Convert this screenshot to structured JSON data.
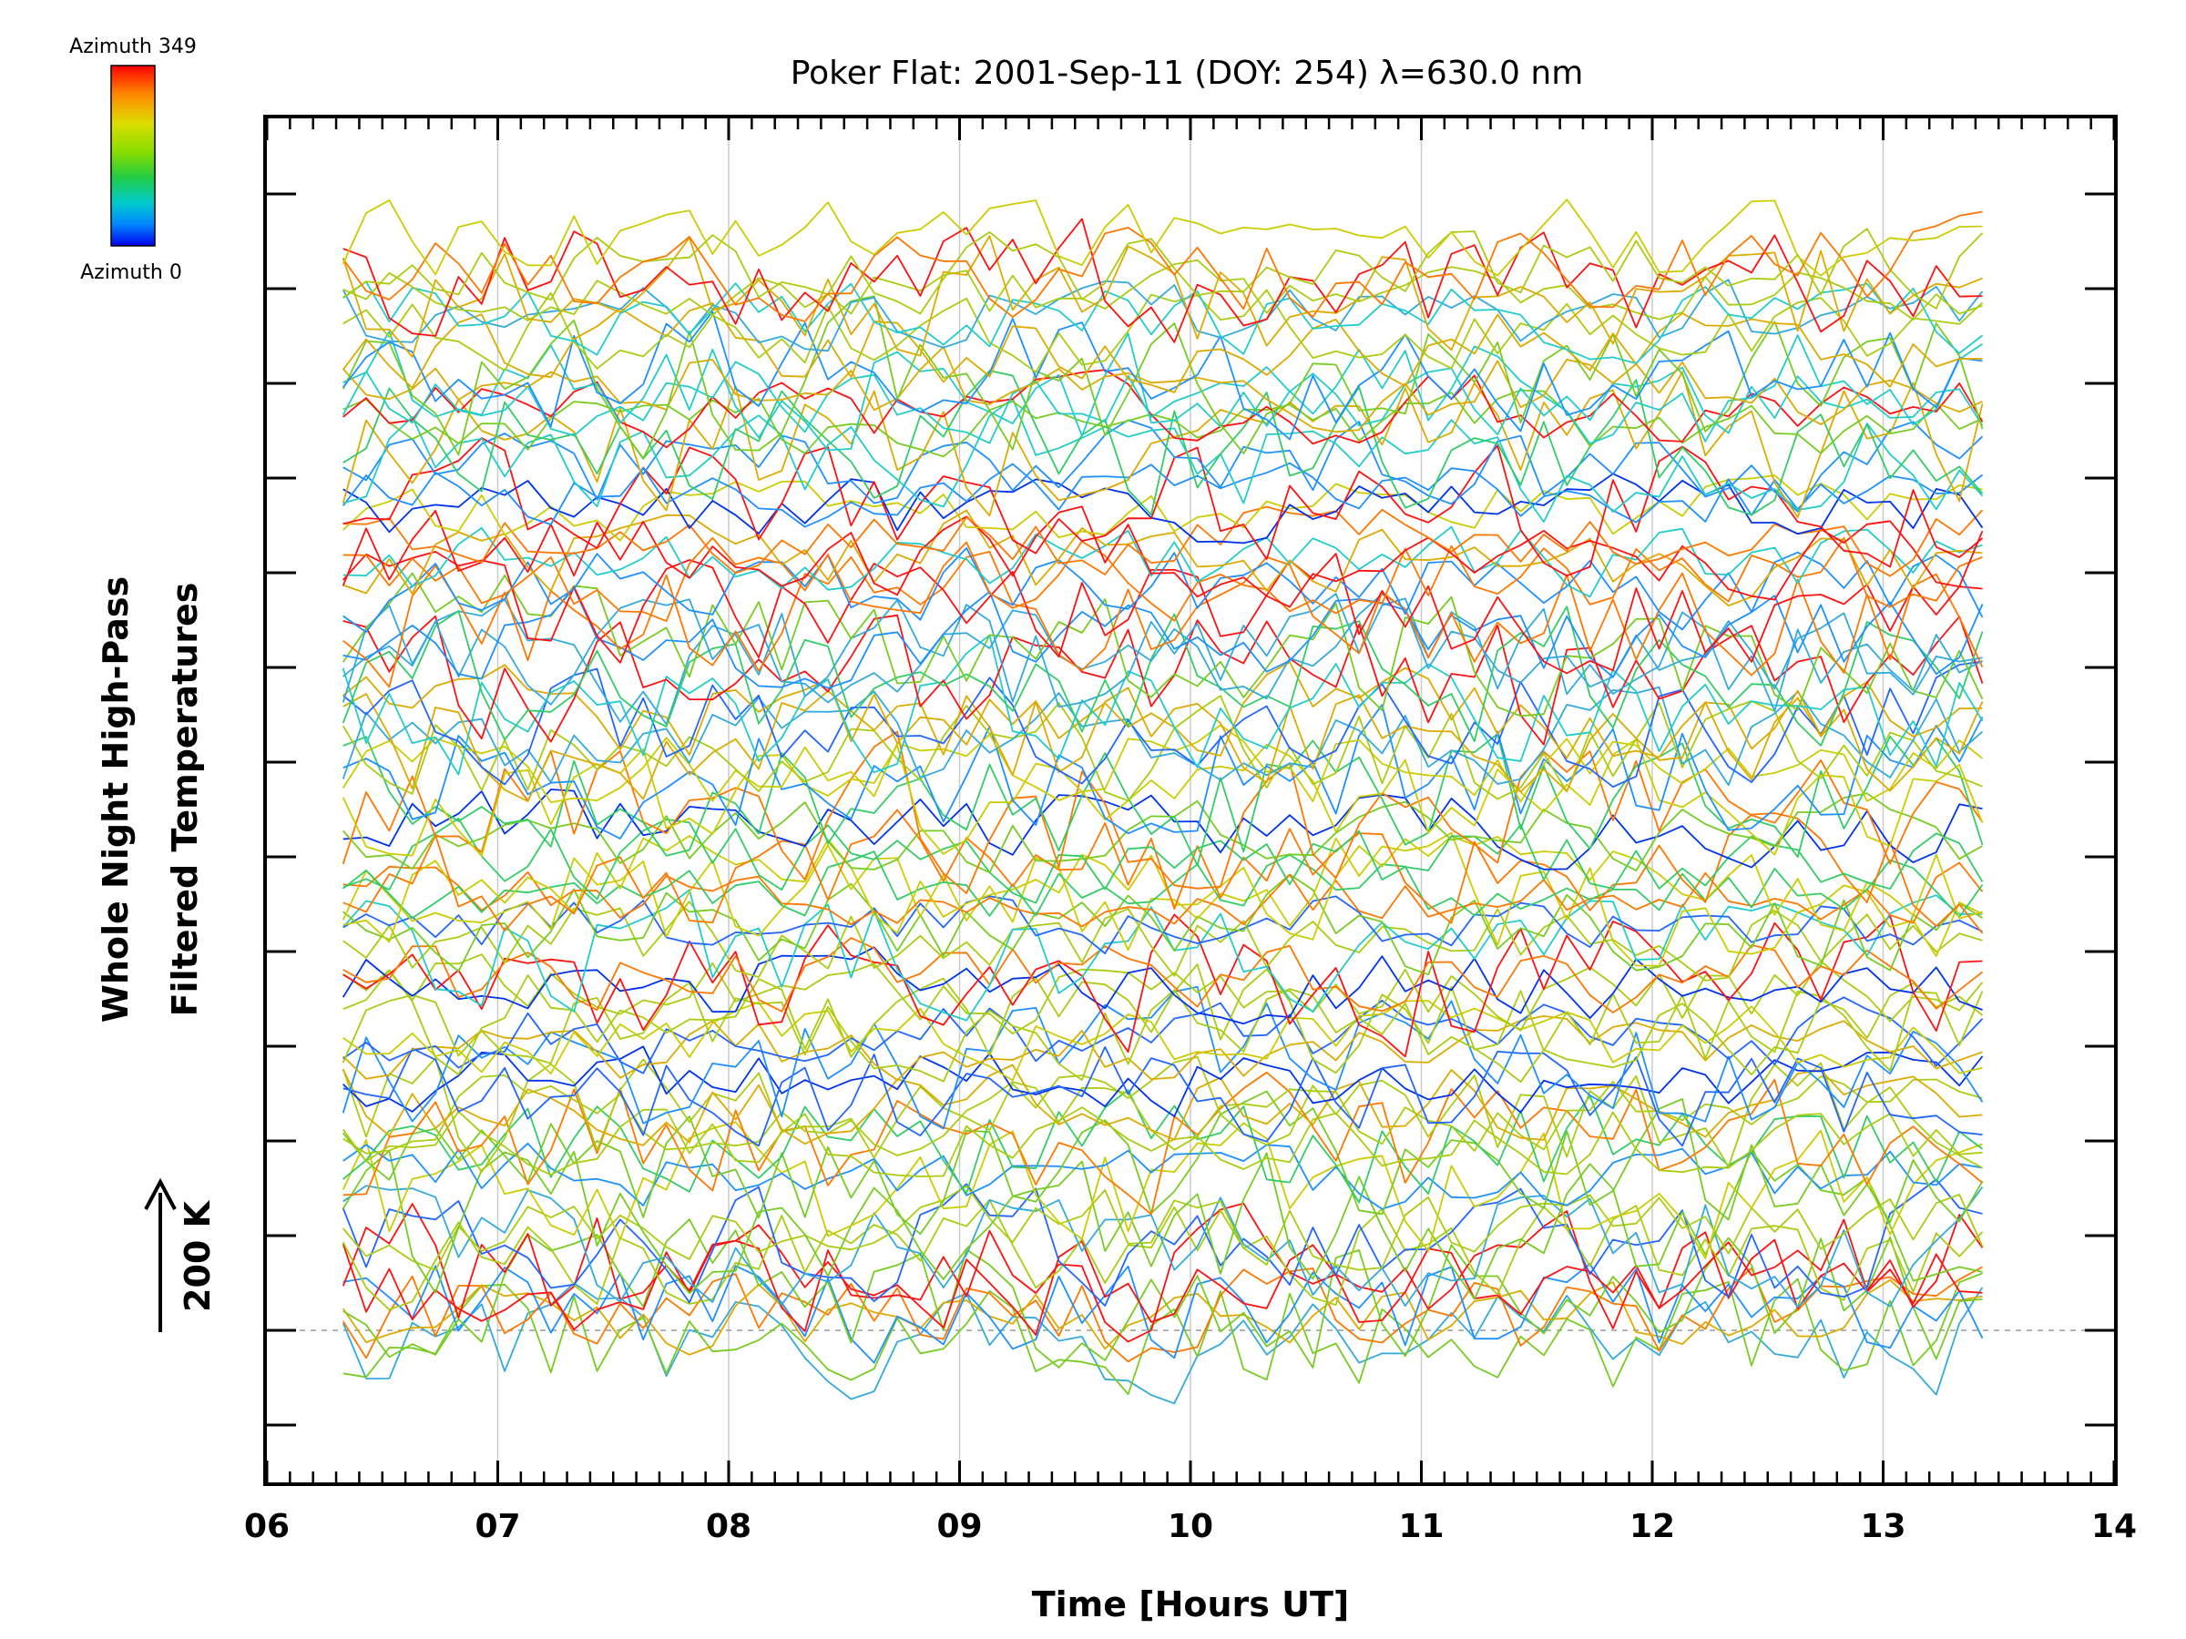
{
  "chart_data": {
    "type": "line",
    "title": "Poker Flat: 2001-Sep-11 (DOY: 254) λ=630.0 nm",
    "xlabel": "Time [Hours UT]",
    "ylabel_line1": "Whole Night High-Pass",
    "ylabel_line2": "Filtered Temperatures",
    "xlim": [
      6,
      14
    ],
    "x_tick_labels": [
      "06",
      "07",
      "08",
      "09",
      "10",
      "11",
      "12",
      "13",
      "14"
    ],
    "x_grid_values": [
      7,
      8,
      9,
      10,
      11,
      12,
      13
    ],
    "grid": true,
    "y_axis_labels": false,
    "scale_arrow_label": "200 K",
    "baseline_dashed": true,
    "x_start": 6.33,
    "x_step": 0.1,
    "n_points": 72,
    "colorbar": {
      "top_label": "Azimuth 349",
      "bottom_label": "Azimuth 0",
      "colors": [
        "#ff0000",
        "#ff8800",
        "#dddd00",
        "#88dd00",
        "#22cc44",
        "#00cccc",
        "#0088ff",
        "#0000ee"
      ]
    },
    "series_colors": [
      "#0033ee",
      "#2266ff",
      "#1e90ff",
      "#33aadd",
      "#22cccc",
      "#33cc66",
      "#77cc22",
      "#aacc11",
      "#cccc00",
      "#ddaa00",
      "#ff7700",
      "#ff1111"
    ],
    "num_series": 96
  }
}
